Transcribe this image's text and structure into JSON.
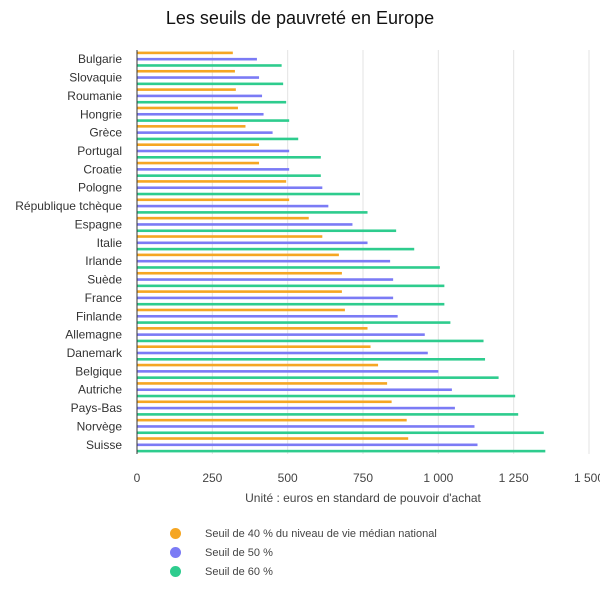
{
  "chart_data": {
    "type": "bar",
    "orientation": "horizontal",
    "title": "Les seuils de pauvreté en Europe",
    "xlabel": "Unité : euros en standard de pouvoir d'achat",
    "ylabel": "",
    "xlim": [
      0,
      1500
    ],
    "xticks": [
      0,
      250,
      500,
      750,
      1000,
      1250,
      1500
    ],
    "xtick_labels": [
      "0",
      "250",
      "500",
      "750",
      "1 000",
      "1 250",
      "1 500"
    ],
    "grid": "vertical",
    "legend_position": "bottom",
    "categories": [
      "Bulgarie",
      "Slovaquie",
      "Roumanie",
      "Hongrie",
      "Grèce",
      "Portugal",
      "Croatie",
      "Pologne",
      "République tchèque",
      "Espagne",
      "Italie",
      "Irlande",
      "Suède",
      "France",
      "Finlande",
      "Allemagne",
      "Danemark",
      "Belgique",
      "Autriche",
      "Pays-Bas",
      "Norvège",
      "Suisse"
    ],
    "series": [
      {
        "name": "Seuil de 40 % du niveau de vie médian national",
        "color": "#f5a623",
        "values": [
          318,
          325,
          328,
          335,
          360,
          405,
          405,
          495,
          505,
          570,
          615,
          670,
          680,
          680,
          690,
          765,
          775,
          800,
          830,
          845,
          895,
          900
        ]
      },
      {
        "name": "Seuil de 50 %",
        "color": "#7b7bf5",
        "values": [
          398,
          405,
          415,
          420,
          450,
          505,
          505,
          615,
          635,
          715,
          765,
          840,
          850,
          850,
          865,
          955,
          965,
          1000,
          1045,
          1055,
          1120,
          1130
        ]
      },
      {
        "name": "Seuil de 60 %",
        "color": "#2ecc8e",
        "values": [
          480,
          485,
          495,
          505,
          535,
          610,
          610,
          740,
          765,
          860,
          920,
          1005,
          1020,
          1020,
          1040,
          1150,
          1155,
          1200,
          1255,
          1265,
          1350,
          1355
        ]
      }
    ]
  }
}
